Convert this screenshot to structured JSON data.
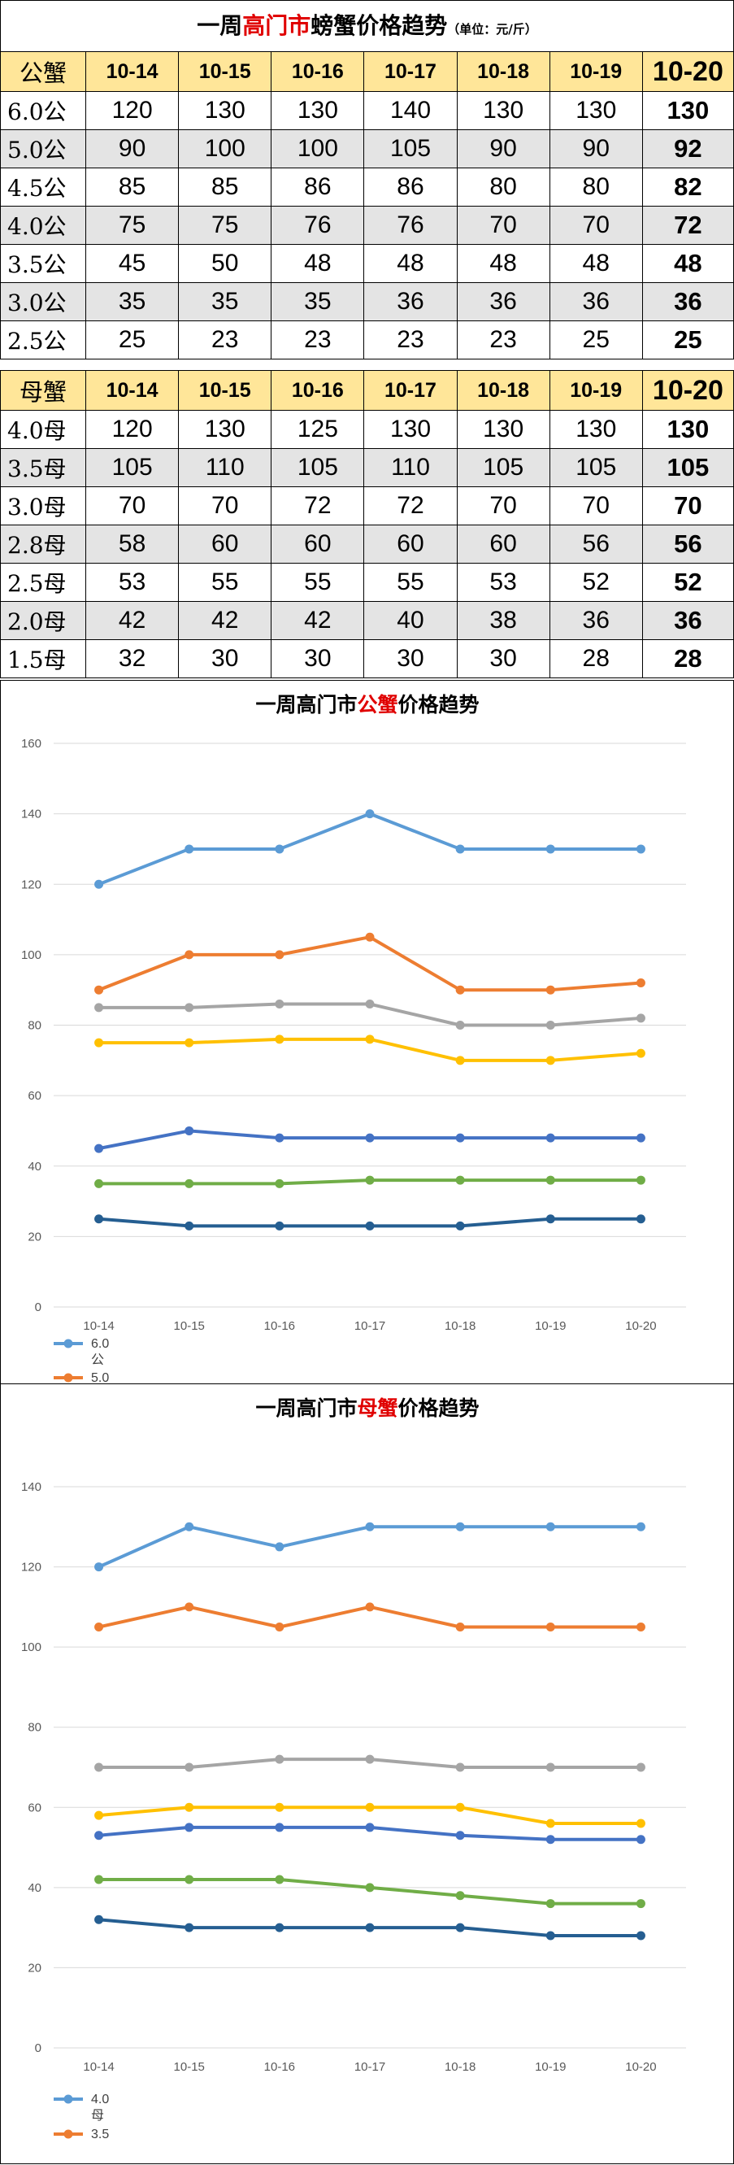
{
  "page": {
    "title_pre": "一周",
    "title_red": "高门市",
    "title_post": "螃蟹价格趋势",
    "unit": "（单位：元/斤）"
  },
  "dates": [
    "10-14",
    "10-15",
    "10-16",
    "10-17",
    "10-18",
    "10-19",
    "10-20"
  ],
  "male_table": {
    "header": "公蟹",
    "rows": [
      {
        "label": "6.0公",
        "values": [
          "120",
          "130",
          "130",
          "140",
          "130",
          "130",
          "130"
        ]
      },
      {
        "label": "5.0公",
        "values": [
          "90",
          "100",
          "100",
          "105",
          "90",
          "90",
          "92"
        ]
      },
      {
        "label": "4.5公",
        "values": [
          "85",
          "85",
          "86",
          "86",
          "80",
          "80",
          "82"
        ]
      },
      {
        "label": "4.0公",
        "values": [
          "75",
          "75",
          "76",
          "76",
          "70",
          "70",
          "72"
        ]
      },
      {
        "label": "3.5公",
        "values": [
          "45",
          "50",
          "48",
          "48",
          "48",
          "48",
          "48"
        ]
      },
      {
        "label": "3.0公",
        "values": [
          "35",
          "35",
          "35",
          "36",
          "36",
          "36",
          "36"
        ]
      },
      {
        "label": "2.5公",
        "values": [
          "25",
          "23",
          "23",
          "23",
          "23",
          "25",
          "25"
        ]
      }
    ]
  },
  "female_table": {
    "header": "母蟹",
    "rows": [
      {
        "label": "4.0母",
        "values": [
          "120",
          "130",
          "125",
          "130",
          "130",
          "130",
          "130"
        ]
      },
      {
        "label": "3.5母",
        "values": [
          "105",
          "110",
          "105",
          "110",
          "105",
          "105",
          "105"
        ]
      },
      {
        "label": "3.0母",
        "values": [
          "70",
          "70",
          "72",
          "72",
          "70",
          "70",
          "70"
        ]
      },
      {
        "label": "2.8母",
        "values": [
          "58",
          "60",
          "60",
          "60",
          "60",
          "56",
          "56"
        ]
      },
      {
        "label": "2.5母",
        "values": [
          "53",
          "55",
          "55",
          "55",
          "53",
          "52",
          "52"
        ]
      },
      {
        "label": "2.0母",
        "values": [
          "42",
          "42",
          "42",
          "40",
          "38",
          "36",
          "36"
        ]
      },
      {
        "label": "1.5母",
        "values": [
          "32",
          "30",
          "30",
          "30",
          "30",
          "28",
          "28"
        ]
      }
    ]
  },
  "chart_data": [
    {
      "type": "line",
      "title_pre": "一周高门市",
      "title_red": "公蟹",
      "title_post": "价格趋势",
      "categories": [
        "10-14",
        "10-15",
        "10-16",
        "10-17",
        "10-18",
        "10-19",
        "10-20"
      ],
      "ylim": [
        0,
        160
      ],
      "yticks": [
        0,
        20,
        40,
        60,
        80,
        100,
        120,
        140,
        160
      ],
      "grid": true,
      "legend": "bottom-left",
      "legend_labels": [
        "6.0",
        "公",
        "5.0"
      ],
      "series": [
        {
          "color": "#5b9bd5",
          "values": [
            120,
            130,
            130,
            140,
            130,
            130,
            130
          ]
        },
        {
          "color": "#ed7d31",
          "values": [
            90,
            100,
            100,
            105,
            90,
            90,
            92
          ]
        },
        {
          "color": "#a5a5a5",
          "values": [
            85,
            85,
            86,
            86,
            80,
            80,
            82
          ]
        },
        {
          "color": "#ffc000",
          "values": [
            75,
            75,
            76,
            76,
            70,
            70,
            72
          ]
        },
        {
          "color": "#4472c4",
          "values": [
            45,
            50,
            48,
            48,
            48,
            48,
            48
          ]
        },
        {
          "color": "#70ad47",
          "values": [
            35,
            35,
            35,
            36,
            36,
            36,
            36
          ]
        },
        {
          "color": "#255e91",
          "values": [
            25,
            23,
            23,
            23,
            23,
            25,
            25
          ]
        }
      ]
    },
    {
      "type": "line",
      "title_pre": "一周高门市",
      "title_red": "母蟹",
      "title_post": "价格趋势",
      "categories": [
        "10-14",
        "10-15",
        "10-16",
        "10-17",
        "10-18",
        "10-19",
        "10-20"
      ],
      "ylim": [
        0,
        140
      ],
      "yticks": [
        0,
        20,
        40,
        60,
        80,
        100,
        120,
        140
      ],
      "grid": true,
      "legend": "bottom-left",
      "legend_labels": [
        "4.0",
        "母",
        "3.5"
      ],
      "series": [
        {
          "color": "#5b9bd5",
          "values": [
            120,
            130,
            125,
            130,
            130,
            130,
            130
          ]
        },
        {
          "color": "#ed7d31",
          "values": [
            105,
            110,
            105,
            110,
            105,
            105,
            105
          ]
        },
        {
          "color": "#a5a5a5",
          "values": [
            70,
            70,
            72,
            72,
            70,
            70,
            70
          ]
        },
        {
          "color": "#ffc000",
          "values": [
            58,
            60,
            60,
            60,
            60,
            56,
            56
          ]
        },
        {
          "color": "#4472c4",
          "values": [
            53,
            55,
            55,
            55,
            53,
            52,
            52
          ]
        },
        {
          "color": "#70ad47",
          "values": [
            42,
            42,
            42,
            40,
            38,
            36,
            36
          ]
        },
        {
          "color": "#255e91",
          "values": [
            32,
            30,
            30,
            30,
            30,
            28,
            28
          ]
        }
      ]
    }
  ]
}
